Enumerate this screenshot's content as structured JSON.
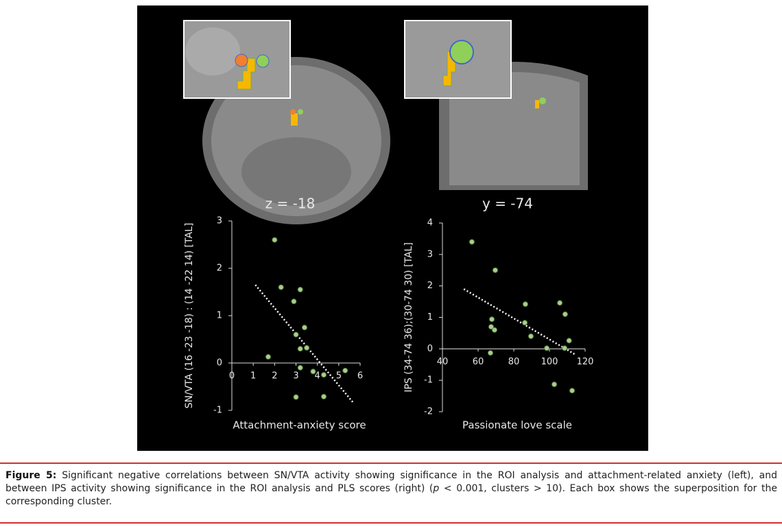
{
  "figure": {
    "panel_labels": [
      "z = -18",
      "y = -74"
    ]
  },
  "chart_data": [
    {
      "type": "scatter",
      "x_label": "Attachment-anxiety score",
      "y_label": "SN/VTA (16 -23 -18) : (14 -22 14) [TAL]",
      "xlim": [
        0,
        6
      ],
      "ylim": [
        -1,
        3
      ],
      "xticks": [
        0,
        1,
        2,
        3,
        4,
        5,
        6
      ],
      "yticks": [
        -1,
        0,
        1,
        2,
        3
      ],
      "color": "#a8d08d",
      "series": [
        {
          "x": [
            2.0,
            2.3,
            2.9,
            3.2,
            3.4,
            3.0,
            3.2,
            3.5,
            1.7,
            3.2,
            3.8,
            4.3,
            5.3,
            3.0,
            4.3
          ],
          "values": [
            2.6,
            1.6,
            1.3,
            1.55,
            0.75,
            0.6,
            0.3,
            0.32,
            0.13,
            -0.1,
            -0.18,
            -0.25,
            -0.16,
            -0.72,
            -0.71
          ]
        }
      ],
      "trendline": {
        "x": [
          1.1,
          5.7
        ],
        "y": [
          1.65,
          -0.85
        ]
      }
    },
    {
      "type": "scatter",
      "x_label": "Passionate love scale",
      "y_label": "IPS (34-74 36);(30-74 30) [TAL]",
      "xlim": [
        40,
        120
      ],
      "ylim": [
        -2,
        4
      ],
      "xticks": [
        40,
        60,
        80,
        100,
        120
      ],
      "yticks": [
        -2,
        -1,
        0,
        1,
        2,
        3,
        4
      ],
      "color": "#a8d08d",
      "series": [
        {
          "x": [
            56.5,
            69.6,
            86.5,
            105.8,
            108.8,
            67.7,
            86.2,
            67.3,
            69.2,
            89.6,
            111,
            98.5,
            108.5,
            66.9,
            102.7,
            112.7
          ],
          "values": [
            3.4,
            2.5,
            1.42,
            1.46,
            1.1,
            0.94,
            0.83,
            0.7,
            0.6,
            0.4,
            0.26,
            0.02,
            0.02,
            -0.13,
            -1.13,
            -1.33
          ]
        }
      ],
      "trendline": {
        "x": [
          52,
          115
        ],
        "y": [
          1.9,
          -0.2
        ]
      }
    }
  ],
  "caption": {
    "label": "Figure 5:",
    "parts": [
      "Significant negative correlations between SN/VTA activity showing significance in the ROI analysis and attachment-related anxiety (left), and between IPS activity showing significance in the ROI analysis and PLS scores (right) (",
      "p",
      " < 0.001, clusters > 10). Each box shows the superposition for the corresponding cluster."
    ]
  }
}
